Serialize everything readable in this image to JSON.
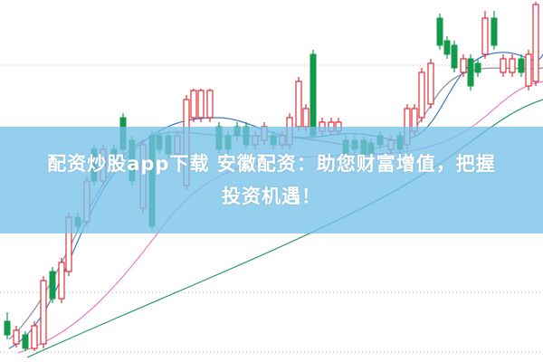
{
  "banner": {
    "lines": [
      "配资炒股app下载 安徽配资：助您财富增值，把握",
      "投资机遇！"
    ]
  }
}
